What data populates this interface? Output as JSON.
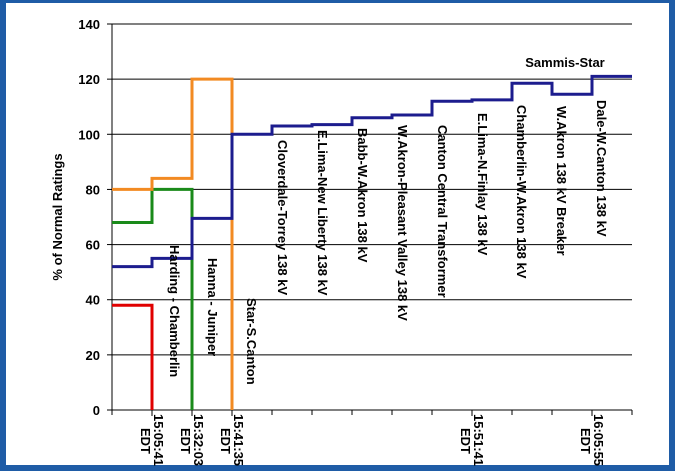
{
  "chart_data": {
    "type": "step",
    "y_label": "% of Normal Ratings",
    "xlim": [
      0,
      13
    ],
    "xticks": [
      {
        "value": 1,
        "label": "15:05:41",
        "label2": "EDT"
      },
      {
        "value": 2,
        "label": "15:32:03",
        "label2": "EDT"
      },
      {
        "value": 3,
        "label": "15:41:35",
        "label2": "EDT"
      },
      {
        "value": 9,
        "label": "15:51:41",
        "label2": "EDT"
      },
      {
        "value": 12,
        "label": "16:05:55",
        "label2": "EDT"
      }
    ],
    "ylim": [
      0,
      140
    ],
    "yticks": [
      0,
      20,
      40,
      60,
      80,
      100,
      120,
      140
    ],
    "grid": true,
    "series": [
      {
        "name": "Harding - Chamberlin",
        "color": "#e00000",
        "x": [
          0,
          1,
          1
        ],
        "values": [
          38,
          38,
          0
        ]
      },
      {
        "name": "Hanna - Juniper",
        "color": "#1a8a1a",
        "x": [
          0,
          1,
          1,
          2,
          2
        ],
        "values": [
          68,
          68,
          80,
          80,
          0
        ]
      },
      {
        "name": "Star-S.Canton",
        "color": "#f28a22",
        "x": [
          0,
          1,
          1,
          2,
          2,
          3,
          3
        ],
        "values": [
          80,
          80,
          84,
          84,
          120,
          120,
          0
        ]
      },
      {
        "name": "Sammis-Star",
        "color": "#1c1c8e",
        "x": [
          0,
          1,
          1,
          2,
          2,
          3,
          3,
          4,
          4,
          5,
          5,
          6,
          6,
          7,
          7,
          8,
          8,
          9,
          9,
          10,
          10,
          11,
          11,
          12,
          12,
          13
        ],
        "values": [
          52,
          52,
          55,
          55,
          69.5,
          69.5,
          100,
          100,
          103,
          103,
          103.5,
          103.5,
          106,
          106,
          107,
          107,
          112,
          112,
          112.5,
          112.5,
          118.5,
          118.5,
          114.5,
          114.5,
          121,
          121
        ]
      }
    ],
    "annotations": [
      "Cloverdale-Torrey 138 kV",
      "E.Lima-New Liberty 138 kV",
      "Babb-W.Akron 138 kV",
      "W.Akron-Pleasant Valley 138 kV",
      "Canton Central Transformer",
      "E.Lima-N.Finlay 138 kV",
      "Chamberlin-W.Akron 138 kV",
      "W.Akron 138 kV Breaker",
      "Dale-W.Canton 138 kV"
    ]
  }
}
